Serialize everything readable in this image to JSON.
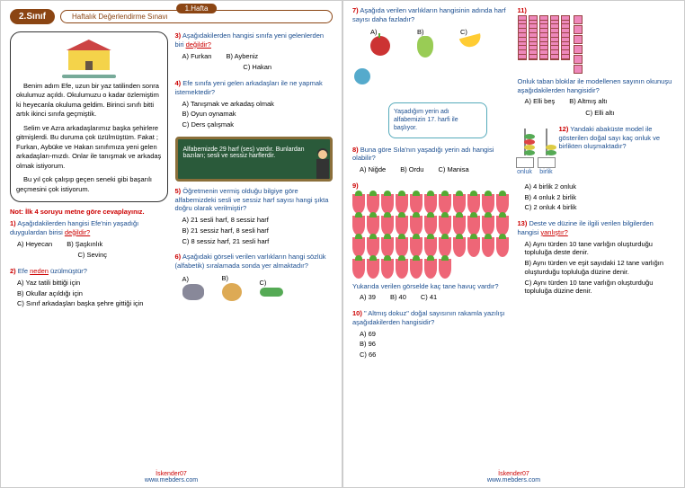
{
  "header": {
    "grade": "2.Sınıf",
    "title": "Haftalık Değerlendirme Sınavı",
    "week": "1.Hafta"
  },
  "story": {
    "p1": "Benim adım Efe, uzun bir yaz tatilinden sonra okulumuz açıldı. Okulumuzu o kadar özlemiştim ki heyecanla okuluma geldim. Birinci sınıfı bitti artık ikinci sınıfa geçmiştik.",
    "p2": "Selim ve Azra arkadaşlarımız başka şehirlere gitmişlerdi. Bu duruma çok üzülmüştüm. Fakat ; Furkan, Aybüke ve Hakan sınıfımıza yeni gelen arkadaşları-mızdı. Onlar ile tanışmak ve arkadaş olmak istiyorum.",
    "p3": "Bu yıl çok çalışıp geçen seneki gibi başarılı geçmesini çok istiyorum."
  },
  "note": "Not: İlk 4 soruyu metne göre cevaplayınız.",
  "q1": {
    "num": "1)",
    "text": "Aşağıdakilerden hangisi Efe'nin yaşadığı duygulardan birisi ",
    "u": "değildir?",
    "a": "A) Heyecan",
    "b": "B) Şaşkınlık",
    "c": "C) Sevinç"
  },
  "q2": {
    "num": "2)",
    "text": "Efe ",
    "u": "neden",
    "text2": " üzülmüştür?",
    "a": "A) Yaz tatili bittiği için",
    "b": "B) Okullar açıldığı için",
    "c": "C) Sınıf arkadaşları başka şehre gittiği için"
  },
  "q3": {
    "num": "3)",
    "text": "Aşağıdakilerden hangisi sınıfa yeni gelenlerden biri ",
    "u": "değildir?",
    "a": "A) Furkan",
    "b": "B) Aybeniz",
    "c": "C) Hakan"
  },
  "q4": {
    "num": "4)",
    "text": "Efe sınıfa yeni gelen arkadaşları ile ne yapmak istemektedir?",
    "a": "A) Tanışmak ve arkadaş olmak",
    "b": "B) Oyun oynamak",
    "c": "C) Ders çalışmak"
  },
  "board": "Alfabemizde 29 harf (ses) vardır. Bunlardan bazıları; sesli ve sessiz harflerdir.",
  "q5": {
    "num": "5)",
    "text": "Öğretmenin vermiş olduğu bilgiye göre alfabemizdeki sesli ve sessiz harf sayısı hangi şıkta doğru olarak verilmiştir?",
    "a": "A) 21 sesli harf, 8 sessiz harf",
    "b": "B) 21 sessiz harf, 8 sesli harf",
    "c": "C) 8 sessiz harf, 21 sesli harf"
  },
  "q6": {
    "num": "6)",
    "text": "Aşağıdaki görseli verilen varlıkların hangi sözlük (alfabetik) sıralamada sonda yer almaktadır?",
    "a": "A)",
    "b": "B)",
    "c": "C)"
  },
  "q7": {
    "num": "7)",
    "text": "Aşağıda verilen varlıkların hangisinin adında harf sayısı daha fazladır?",
    "a": "A)",
    "b": "B)",
    "c": "C)"
  },
  "speech": "Yaşadığım yerin adı alfabemizin 17. harfi ile başlıyor.",
  "q8": {
    "num": "8)",
    "text": "Buna göre Sıla'nın yaşadığı yerin adı hangisi olabilir?",
    "a": "A) Niğde",
    "b": "B) Ordu",
    "c": "C) Manisa"
  },
  "q9": {
    "num": "9)",
    "text": "Yukarıda verilen görselde kaç tane havuç vardır?",
    "a": "A) 39",
    "b": "B) 40",
    "c": "C) 41"
  },
  "q10": {
    "num": "10)",
    "text": "\" Altmış dokuz\" doğal sayısının rakamla yazılışı aşağıdakilerden hangisidir?",
    "a": "A) 69",
    "b": "B) 96",
    "c": "C) 66"
  },
  "q11": {
    "num": "11)",
    "text": "Onluk taban bloklar ile modellenen sayının okunuşu aşağıdakilerden hangisidir?",
    "a": "A) Elli beş",
    "b": "B) Altmış altı",
    "c": "C) Elli altı"
  },
  "q12": {
    "num": "12)",
    "text": "Yandaki abaküste model ile gösterilen doğal sayı kaç onluk ve birlikten oluşmaktadır?",
    "onluk": "onluk",
    "birlik": "birlik",
    "a": "A) 4 birlik 2 onluk",
    "b": "B) 4 onluk 2 birlik",
    "c": "C) 2 onluk 4 birlik"
  },
  "q13": {
    "num": "13)",
    "text": "Deste ve düzine ile ilgili verilen bilgilerden hangisi ",
    "u": "yanlıştır?",
    "a": "A) Aynı türden 10 tane varlığın oluşturduğu topluluğa deste denir.",
    "b": "B) Aynı türden ve eşit sayıdaki 12 tane varlığın oluşturduğu topluluğa düzine denir.",
    "c": "C) Aynı türden 10 tane varlığın oluşturduğu topluluğa düzine denir."
  },
  "footer": {
    "author": "İskender07",
    "site": "www.mebders.com"
  }
}
